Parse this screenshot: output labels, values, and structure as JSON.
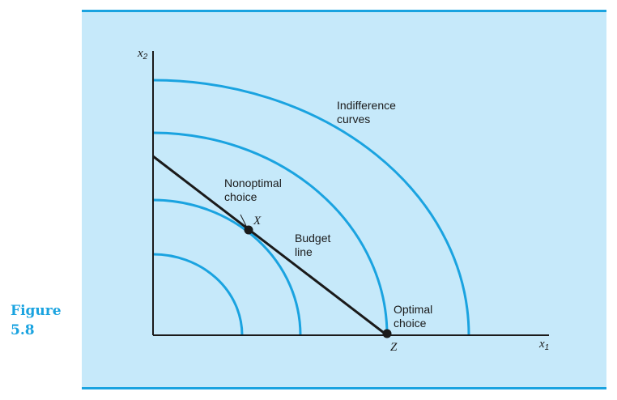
{
  "figure": {
    "label_word": "Figure",
    "label_number": "5.8"
  },
  "diagram": {
    "x_axis": {
      "symbol": "x",
      "subscript": "1"
    },
    "y_axis": {
      "symbol": "x",
      "subscript": "2"
    },
    "labels": {
      "indifference_line1": "Indifference",
      "indifference_line2": "curves",
      "nonoptimal_line1": "Nonoptimal",
      "nonoptimal_line2": "choice",
      "point_x": "X",
      "budget_line1": "Budget",
      "budget_line2": "line",
      "optimal_line1": "Optimal",
      "optimal_line2": "choice",
      "point_z": "Z"
    },
    "colors": {
      "curve": "#1aa3e0",
      "panel": "#c6e9fa",
      "axis": "#1a1a1a"
    },
    "indifference_curve_count": 4
  }
}
